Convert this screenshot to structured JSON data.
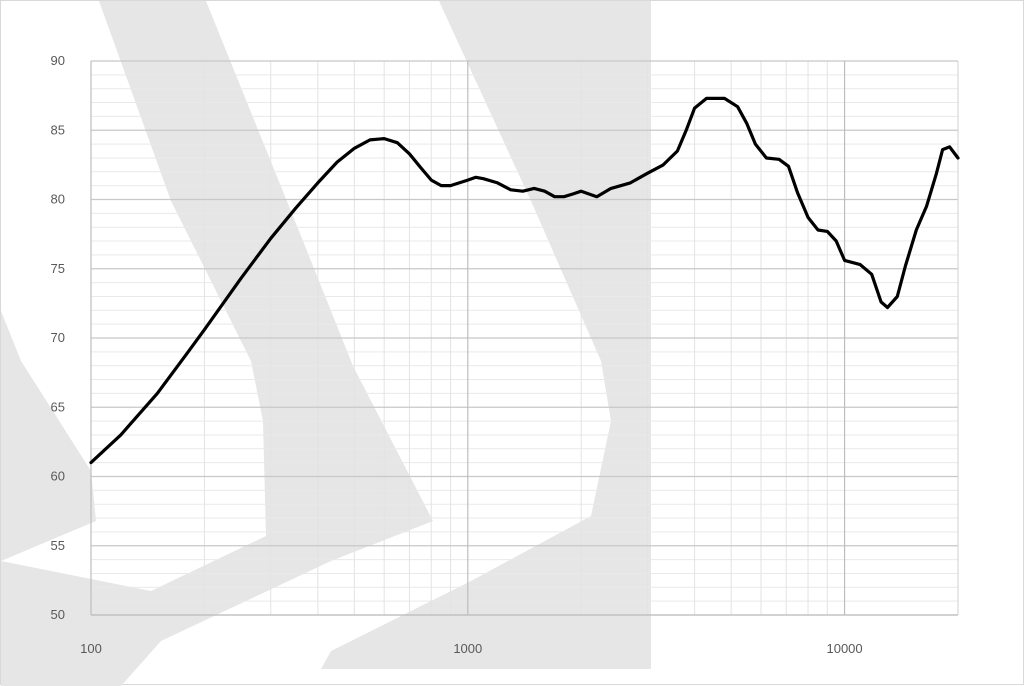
{
  "chart_data": {
    "type": "line",
    "title": "",
    "xlabel": "",
    "ylabel": "",
    "x_scale": "log",
    "xlim": [
      100,
      20000
    ],
    "ylim": [
      50,
      90
    ],
    "y_ticks": [
      90,
      85,
      80,
      75,
      70,
      65,
      60,
      55,
      50
    ],
    "x_tick_labels": [
      {
        "value": 100,
        "label": "100"
      },
      {
        "value": 1000,
        "label": "1000"
      },
      {
        "value": 10000,
        "label": "10000"
      }
    ],
    "grid": true,
    "minor_grid": true,
    "legend": "none",
    "series": [
      {
        "color": "#000000",
        "points": [
          [
            100,
            61.0
          ],
          [
            120,
            63.0
          ],
          [
            150,
            66.0
          ],
          [
            180,
            68.9
          ],
          [
            200,
            70.6
          ],
          [
            250,
            74.3
          ],
          [
            300,
            77.2
          ],
          [
            350,
            79.4
          ],
          [
            400,
            81.2
          ],
          [
            450,
            82.7
          ],
          [
            500,
            83.7
          ],
          [
            550,
            84.3
          ],
          [
            600,
            84.4
          ],
          [
            650,
            84.1
          ],
          [
            700,
            83.3
          ],
          [
            750,
            82.3
          ],
          [
            800,
            81.4
          ],
          [
            850,
            81.0
          ],
          [
            900,
            81.0
          ],
          [
            1000,
            81.4
          ],
          [
            1050,
            81.6
          ],
          [
            1100,
            81.5
          ],
          [
            1200,
            81.2
          ],
          [
            1300,
            80.7
          ],
          [
            1400,
            80.6
          ],
          [
            1500,
            80.8
          ],
          [
            1600,
            80.6
          ],
          [
            1700,
            80.2
          ],
          [
            1800,
            80.2
          ],
          [
            1900,
            80.4
          ],
          [
            2000,
            80.6
          ],
          [
            2200,
            80.2
          ],
          [
            2400,
            80.8
          ],
          [
            2700,
            81.2
          ],
          [
            3000,
            81.9
          ],
          [
            3300,
            82.5
          ],
          [
            3600,
            83.5
          ],
          [
            3800,
            85.0
          ],
          [
            4000,
            86.6
          ],
          [
            4300,
            87.3
          ],
          [
            4800,
            87.3
          ],
          [
            5200,
            86.7
          ],
          [
            5500,
            85.5
          ],
          [
            5800,
            84.0
          ],
          [
            6200,
            83.0
          ],
          [
            6700,
            82.9
          ],
          [
            7100,
            82.4
          ],
          [
            7500,
            80.5
          ],
          [
            8000,
            78.7
          ],
          [
            8500,
            77.8
          ],
          [
            9000,
            77.7
          ],
          [
            9500,
            77.0
          ],
          [
            10000,
            75.6
          ],
          [
            11000,
            75.3
          ],
          [
            11800,
            74.6
          ],
          [
            12500,
            72.6
          ],
          [
            13000,
            72.2
          ],
          [
            13800,
            73.0
          ],
          [
            14500,
            75.2
          ],
          [
            15500,
            77.8
          ],
          [
            16500,
            79.5
          ],
          [
            17500,
            81.8
          ],
          [
            18200,
            83.6
          ],
          [
            19000,
            83.8
          ],
          [
            20000,
            83.0
          ]
        ]
      }
    ]
  }
}
